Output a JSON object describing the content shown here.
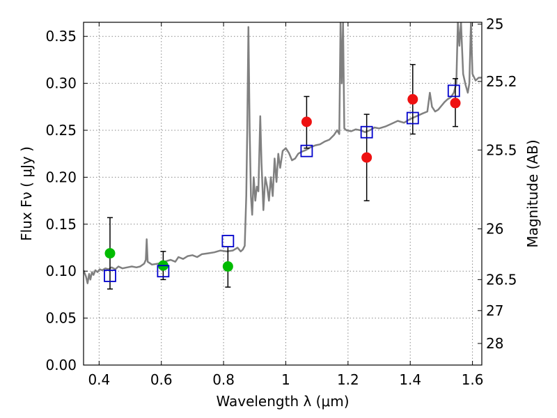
{
  "chart_data": {
    "type": "scatter",
    "xlabel": "Wavelength  λ (μm)",
    "ylabel": "Flux  Fν  ( μJy )",
    "ylabel_right": "Magnitude (AB)",
    "xlim": [
      0.35,
      1.63
    ],
    "ylim": [
      0.0,
      0.365
    ],
    "grid": true,
    "x_ticks": [
      {
        "value": 0.4,
        "label": "0.4"
      },
      {
        "value": 0.6,
        "label": "0.6"
      },
      {
        "value": 0.8,
        "label": "0.8"
      },
      {
        "value": 1.0,
        "label": "1"
      },
      {
        "value": 1.2,
        "label": "1.2"
      },
      {
        "value": 1.4,
        "label": "1.4"
      },
      {
        "value": 1.6,
        "label": "1.6"
      }
    ],
    "y_ticks": [
      {
        "value": 0.0,
        "label": "0.00"
      },
      {
        "value": 0.05,
        "label": "0.05"
      },
      {
        "value": 0.1,
        "label": "0.10"
      },
      {
        "value": 0.15,
        "label": "0.15"
      },
      {
        "value": 0.2,
        "label": "0.20"
      },
      {
        "value": 0.25,
        "label": "0.25"
      },
      {
        "value": 0.3,
        "label": "0.30"
      },
      {
        "value": 0.35,
        "label": "0.35"
      }
    ],
    "mag_ticks": [
      {
        "label": "25",
        "flux": 0.363
      },
      {
        "label": "25.2",
        "flux": 0.302
      },
      {
        "label": "25.5",
        "flux": 0.229
      },
      {
        "label": "26",
        "flux": 0.145
      },
      {
        "label": "26.5",
        "flux": 0.091
      },
      {
        "label": "27",
        "flux": 0.058
      },
      {
        "label": "28",
        "flux": 0.023
      }
    ],
    "colors": {
      "spectrum": "#808080",
      "green_points": "#00bb00",
      "red_points": "#ee1111",
      "model_squares": "#0000cc",
      "error_bars": "#000000",
      "grid": "#888888"
    },
    "series": [
      {
        "marker": "circle",
        "color": "green",
        "points": [
          {
            "x": 0.435,
            "y": 0.119,
            "err_low": 0.081,
            "err_high": 0.157
          },
          {
            "x": 0.606,
            "y": 0.106,
            "err_low": 0.091,
            "err_high": 0.121
          },
          {
            "x": 0.814,
            "y": 0.105,
            "err_low": 0.083,
            "err_high": 0.126
          }
        ]
      },
      {
        "marker": "circle",
        "color": "red",
        "points": [
          {
            "x": 1.067,
            "y": 0.259,
            "err_low": 0.231,
            "err_high": 0.286
          },
          {
            "x": 1.26,
            "y": 0.221,
            "err_low": 0.175,
            "err_high": 0.267
          },
          {
            "x": 1.408,
            "y": 0.283,
            "err_low": 0.246,
            "err_high": 0.32
          },
          {
            "x": 1.545,
            "y": 0.279,
            "err_low": 0.254,
            "err_high": 0.305
          }
        ]
      },
      {
        "marker": "open-square",
        "color": "blue",
        "points": [
          {
            "x": 0.435,
            "y": 0.095
          },
          {
            "x": 0.606,
            "y": 0.1
          },
          {
            "x": 0.814,
            "y": 0.132
          },
          {
            "x": 1.067,
            "y": 0.228
          },
          {
            "x": 1.26,
            "y": 0.248
          },
          {
            "x": 1.408,
            "y": 0.263
          },
          {
            "x": 1.54,
            "y": 0.292
          }
        ]
      },
      {
        "marker": "line",
        "color": "gray",
        "points": [
          [
            0.35,
            0.101
          ],
          [
            0.358,
            0.094
          ],
          [
            0.363,
            0.087
          ],
          [
            0.368,
            0.097
          ],
          [
            0.372,
            0.091
          ],
          [
            0.377,
            0.099
          ],
          [
            0.382,
            0.096
          ],
          [
            0.388,
            0.101
          ],
          [
            0.395,
            0.099
          ],
          [
            0.402,
            0.102
          ],
          [
            0.41,
            0.101
          ],
          [
            0.42,
            0.103
          ],
          [
            0.43,
            0.102
          ],
          [
            0.44,
            0.104
          ],
          [
            0.452,
            0.102
          ],
          [
            0.462,
            0.105
          ],
          [
            0.475,
            0.103
          ],
          [
            0.49,
            0.104
          ],
          [
            0.505,
            0.105
          ],
          [
            0.52,
            0.104
          ],
          [
            0.532,
            0.105
          ],
          [
            0.545,
            0.108
          ],
          [
            0.55,
            0.112
          ],
          [
            0.553,
            0.134
          ],
          [
            0.556,
            0.11
          ],
          [
            0.57,
            0.107
          ],
          [
            0.59,
            0.108
          ],
          [
            0.61,
            0.11
          ],
          [
            0.63,
            0.112
          ],
          [
            0.645,
            0.11
          ],
          [
            0.655,
            0.115
          ],
          [
            0.67,
            0.113
          ],
          [
            0.685,
            0.116
          ],
          [
            0.7,
            0.117
          ],
          [
            0.715,
            0.115
          ],
          [
            0.73,
            0.118
          ],
          [
            0.75,
            0.119
          ],
          [
            0.77,
            0.12
          ],
          [
            0.79,
            0.122
          ],
          [
            0.81,
            0.121
          ],
          [
            0.83,
            0.122
          ],
          [
            0.845,
            0.125
          ],
          [
            0.855,
            0.121
          ],
          [
            0.862,
            0.123
          ],
          [
            0.868,
            0.127
          ],
          [
            0.873,
            0.18
          ],
          [
            0.876,
            0.25
          ],
          [
            0.88,
            0.36
          ],
          [
            0.884,
            0.25
          ],
          [
            0.888,
            0.18
          ],
          [
            0.892,
            0.16
          ],
          [
            0.897,
            0.2
          ],
          [
            0.902,
            0.175
          ],
          [
            0.907,
            0.19
          ],
          [
            0.912,
            0.185
          ],
          [
            0.918,
            0.265
          ],
          [
            0.922,
            0.215
          ],
          [
            0.928,
            0.165
          ],
          [
            0.934,
            0.2
          ],
          [
            0.94,
            0.19
          ],
          [
            0.946,
            0.175
          ],
          [
            0.952,
            0.2
          ],
          [
            0.958,
            0.18
          ],
          [
            0.964,
            0.22
          ],
          [
            0.97,
            0.195
          ],
          [
            0.976,
            0.225
          ],
          [
            0.982,
            0.21
          ],
          [
            0.99,
            0.228
          ],
          [
            1.0,
            0.231
          ],
          [
            1.01,
            0.226
          ],
          [
            1.02,
            0.218
          ],
          [
            1.03,
            0.22
          ],
          [
            1.04,
            0.225
          ],
          [
            1.05,
            0.227
          ],
          [
            1.065,
            0.229
          ],
          [
            1.08,
            0.232
          ],
          [
            1.095,
            0.234
          ],
          [
            1.11,
            0.235
          ],
          [
            1.125,
            0.238
          ],
          [
            1.14,
            0.24
          ],
          [
            1.155,
            0.245
          ],
          [
            1.165,
            0.25
          ],
          [
            1.172,
            0.246
          ],
          [
            1.176,
            0.365
          ],
          [
            1.18,
            0.3
          ],
          [
            1.184,
            0.365
          ],
          [
            1.188,
            0.252
          ],
          [
            1.195,
            0.25
          ],
          [
            1.21,
            0.249
          ],
          [
            1.225,
            0.251
          ],
          [
            1.24,
            0.25
          ],
          [
            1.255,
            0.248
          ],
          [
            1.27,
            0.25
          ],
          [
            1.285,
            0.253
          ],
          [
            1.3,
            0.252
          ],
          [
            1.32,
            0.254
          ],
          [
            1.34,
            0.257
          ],
          [
            1.36,
            0.26
          ],
          [
            1.38,
            0.258
          ],
          [
            1.4,
            0.262
          ],
          [
            1.42,
            0.265
          ],
          [
            1.44,
            0.268
          ],
          [
            1.455,
            0.27
          ],
          [
            1.463,
            0.29
          ],
          [
            1.47,
            0.275
          ],
          [
            1.48,
            0.27
          ],
          [
            1.49,
            0.272
          ],
          [
            1.5,
            0.276
          ],
          [
            1.51,
            0.28
          ],
          [
            1.52,
            0.283
          ],
          [
            1.53,
            0.285
          ],
          [
            1.54,
            0.29
          ],
          [
            1.548,
            0.3
          ],
          [
            1.553,
            0.365
          ],
          [
            1.558,
            0.34
          ],
          [
            1.563,
            0.365
          ],
          [
            1.57,
            0.31
          ],
          [
            1.578,
            0.298
          ],
          [
            1.585,
            0.29
          ],
          [
            1.59,
            0.3
          ],
          [
            1.595,
            0.365
          ],
          [
            1.6,
            0.31
          ],
          [
            1.61,
            0.303
          ],
          [
            1.62,
            0.306
          ],
          [
            1.63,
            0.306
          ]
        ]
      }
    ]
  }
}
